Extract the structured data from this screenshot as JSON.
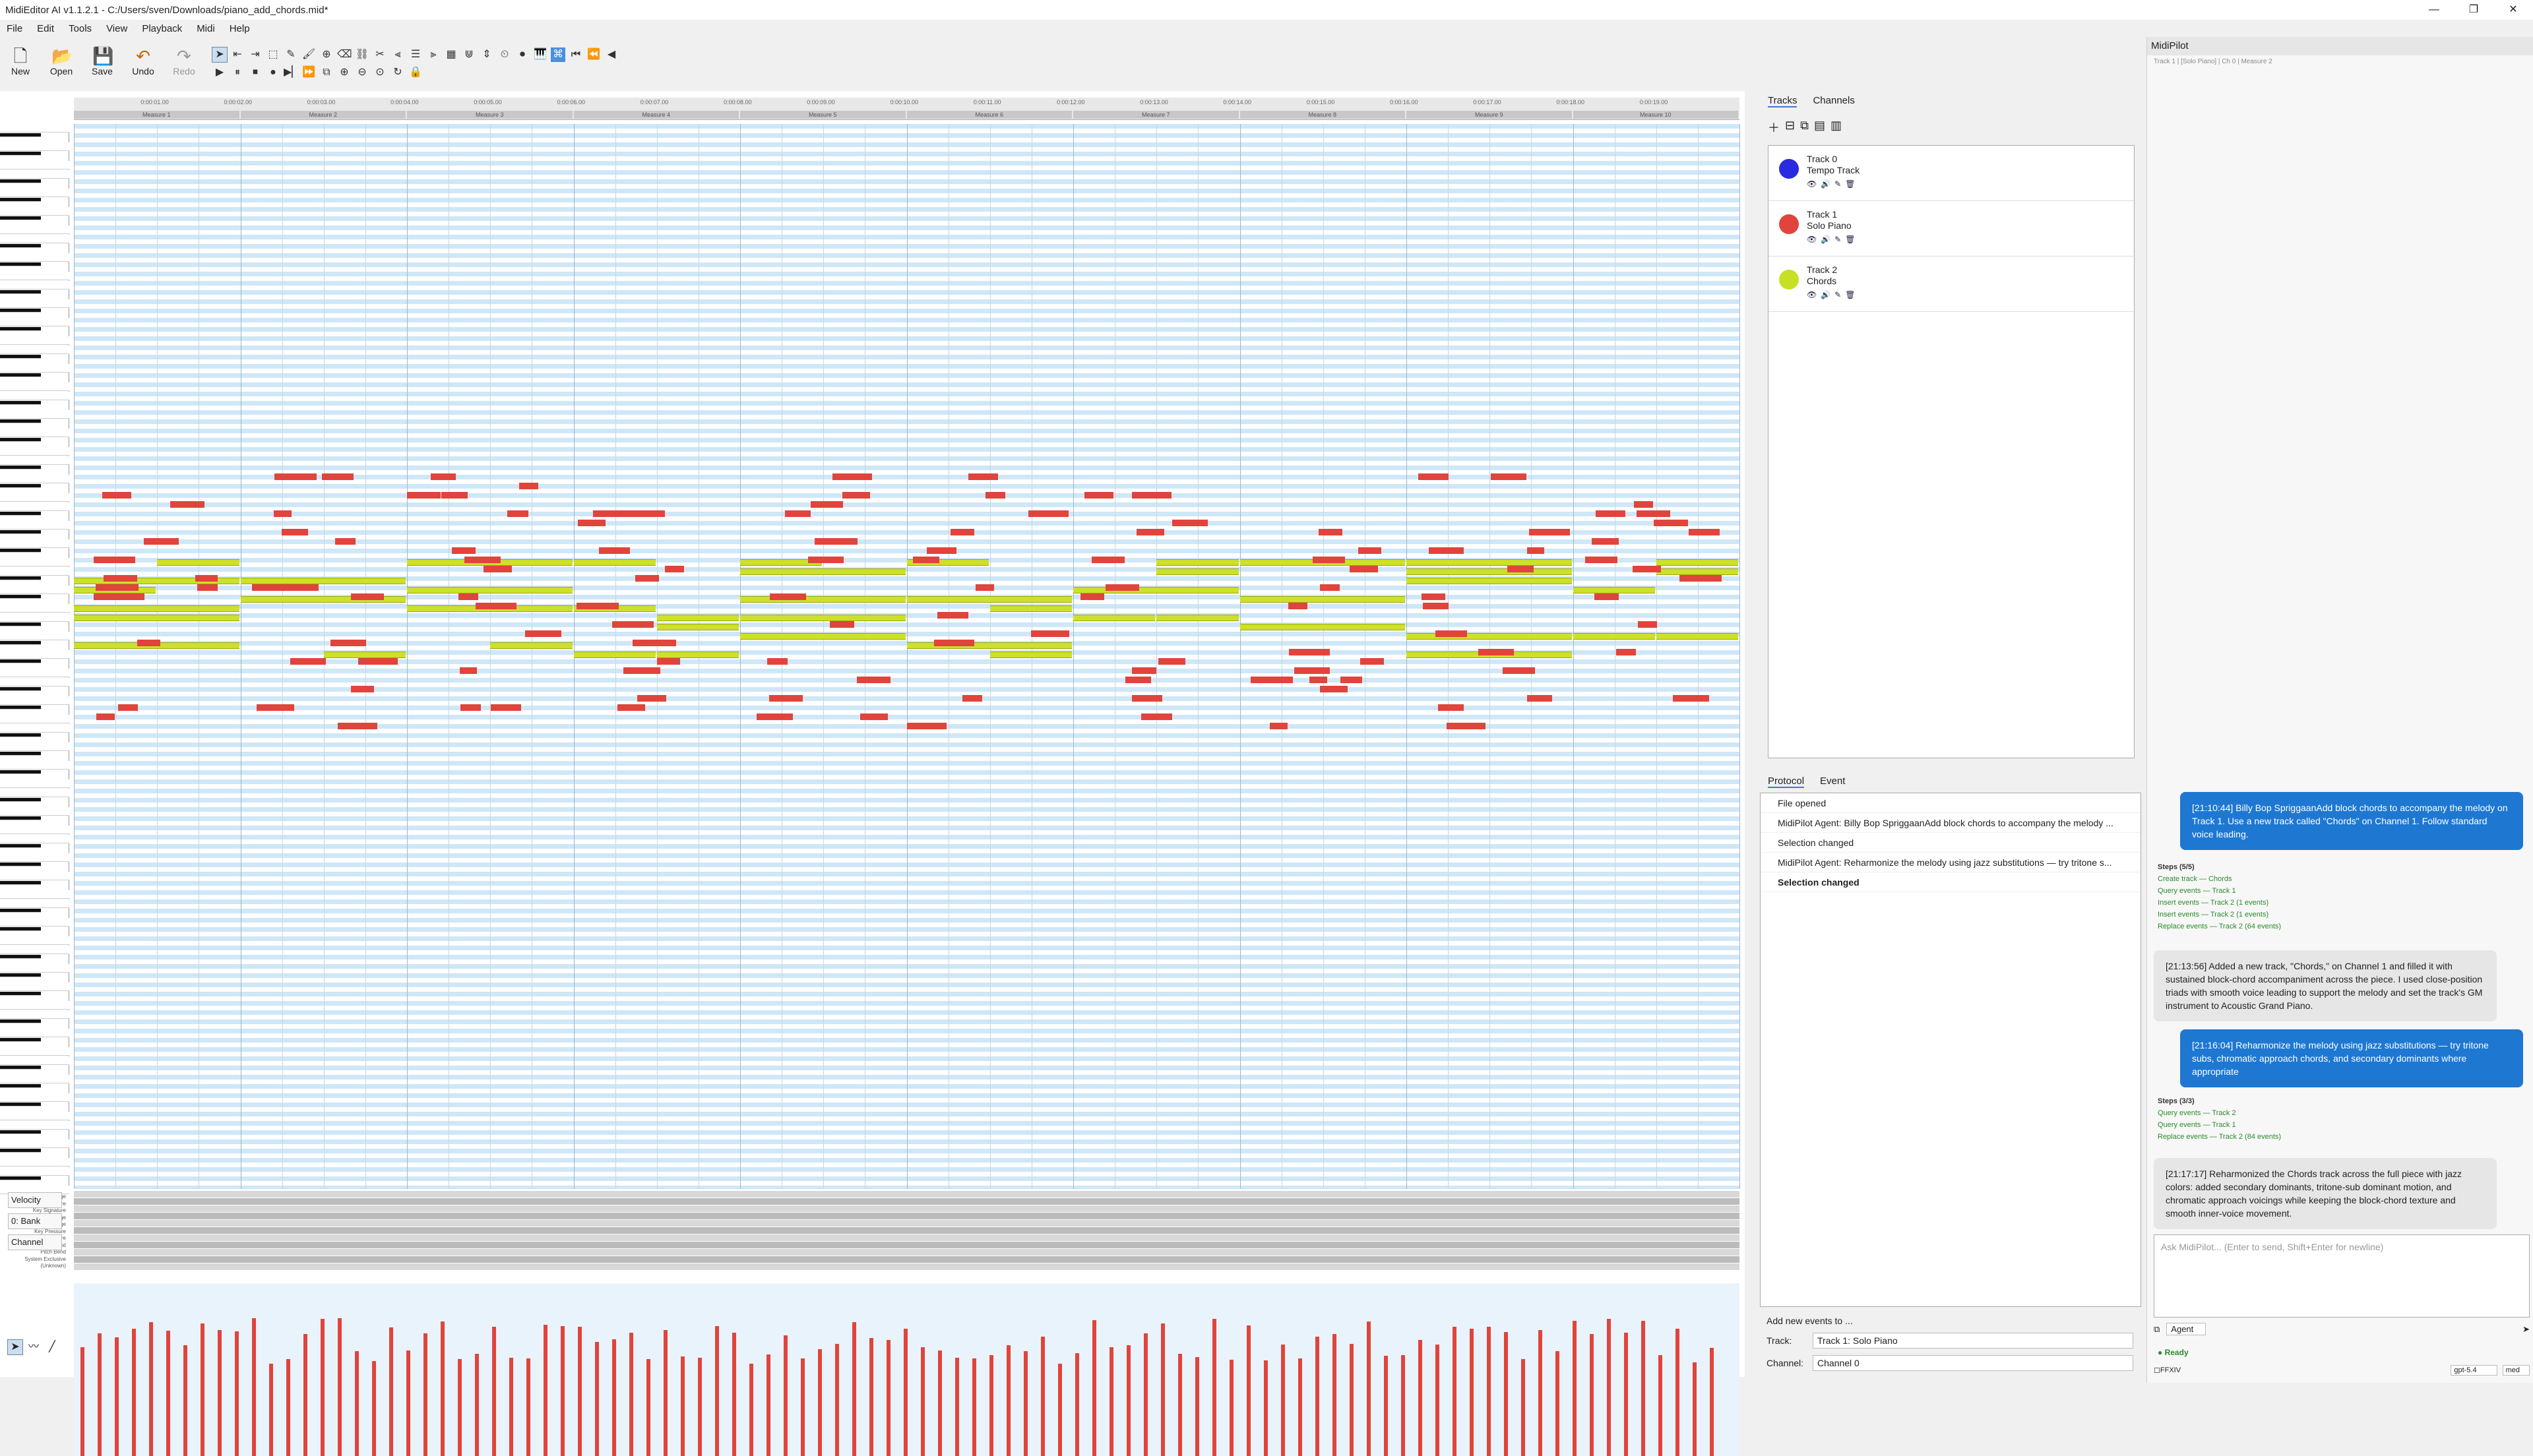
{
  "window": {
    "title": "MidiEditor AI v1.1.2.1 - C:/Users/sven/Downloads/piano_add_chords.mid*",
    "controls": [
      "—",
      "❐",
      "✕"
    ]
  },
  "menu": [
    "File",
    "Edit",
    "Tools",
    "View",
    "Playback",
    "Midi",
    "Help"
  ],
  "toolbar": {
    "new_label": "New",
    "open_label": "Open",
    "save_label": "Save",
    "undo_label": "Undo",
    "redo_label": "Redo"
  },
  "timeline": {
    "times": [
      "0:00:01.00",
      "0:00:02.00",
      "0:00:03.00",
      "0:00:04.00",
      "0:00:05.00",
      "0:00:06.00",
      "0:00:07.00",
      "0:00:08.00",
      "0:00:09.00",
      "0:00:10.00",
      "0:00:11.00",
      "0:00:12.00",
      "0:00:13.00",
      "0:00:14.00",
      "0:00:15.00",
      "0:00:16.00",
      "0:00:17.00",
      "0:00:18.00",
      "0:00:19.00"
    ],
    "measures": [
      "Measure 1",
      "Measure 2",
      "Measure 3",
      "Measure 4",
      "Measure 5",
      "Measure 6",
      "Measure 7",
      "Measure 8",
      "Measure 9",
      "Measure 10"
    ]
  },
  "event_lanes": [
    "Tempo Change",
    "Time Signature",
    "Key Signature",
    "Program Change",
    "Control Change",
    "Key Pressure",
    "Channel Pressure",
    "Text",
    "Pitch Bend",
    "System Exclusive",
    "(Unknown)"
  ],
  "side_controls": {
    "velocity": "Velocity",
    "bank": "0: Bank",
    "channel": "Channel"
  },
  "tracks_panel": {
    "tabs": [
      "Tracks",
      "Channels"
    ],
    "tracks": [
      {
        "id": "Track 0",
        "name": "Tempo Track",
        "color": "#2a2ae0"
      },
      {
        "id": "Track 1",
        "name": "Solo Piano",
        "color": "#e0443c"
      },
      {
        "id": "Track 2",
        "name": "Chords",
        "color": "#c7e024"
      }
    ]
  },
  "protocol_panel": {
    "tabs": [
      "Protocol",
      "Event"
    ],
    "items": [
      "File opened",
      "MidiPilot Agent: Billy Bop SpriggaanAdd block chords to accompany the melody ...",
      "Selection changed",
      "MidiPilot Agent: Reharmonize the melody using jazz substitutions — try tritone s...",
      "Selection changed"
    ]
  },
  "add_events": {
    "title": "Add new events to ...",
    "track_label": "Track:",
    "track_value": "Track 1: Solo Piano",
    "channel_label": "Channel:",
    "channel_value": "Channel 0"
  },
  "midipilot": {
    "title": "MidiPilot",
    "context": "Track 1 | [Solo Piano] | Ch 0 | Measure 2",
    "msg1": "[21:10:44] Billy Bop SpriggaanAdd block chords to accompany the melody on Track 1. Use a new track called \"Chords\" on Channel 1. Follow standard voice leading.",
    "steps1_head": "Steps (5/5)",
    "steps1": [
      "Create track — Chords",
      "Query events — Track 1",
      "Insert events — Track 2 (1 events)",
      "Insert events — Track 2 (1 events)",
      "Replace events — Track 2 (64 events)"
    ],
    "reply1": "[21:13:56] Added a new track, \"Chords,\" on Channel 1 and filled it with sustained block-chord accompaniment across the piece. I used close-position triads with smooth voice leading to support the melody and set the track's GM instrument to Acoustic Grand Piano.",
    "msg2": "[21:16:04] Reharmonize the melody using jazz substitutions — try tritone subs, chromatic approach chords, and secondary dominants where appropriate",
    "steps2_head": "Steps (3/3)",
    "steps2": [
      "Query events — Track 2",
      "Query events — Track 1",
      "Replace events — Track 2 (84 events)"
    ],
    "reply2": "[21:17:17] Reharmonized the Chords track across the full piece with jazz colors: added secondary dominants, tritone-sub dominant motion, and chromatic approach voicings while keeping the block-chord texture and smooth inner-voice movement.",
    "input_placeholder": "Ask MidiPilot... (Enter to send, Shift+Enter for newline)",
    "mode": "Agent",
    "status": "Ready",
    "ffxiv_label": "FFXIV",
    "model": "gpt-5.4",
    "effort": "med"
  }
}
